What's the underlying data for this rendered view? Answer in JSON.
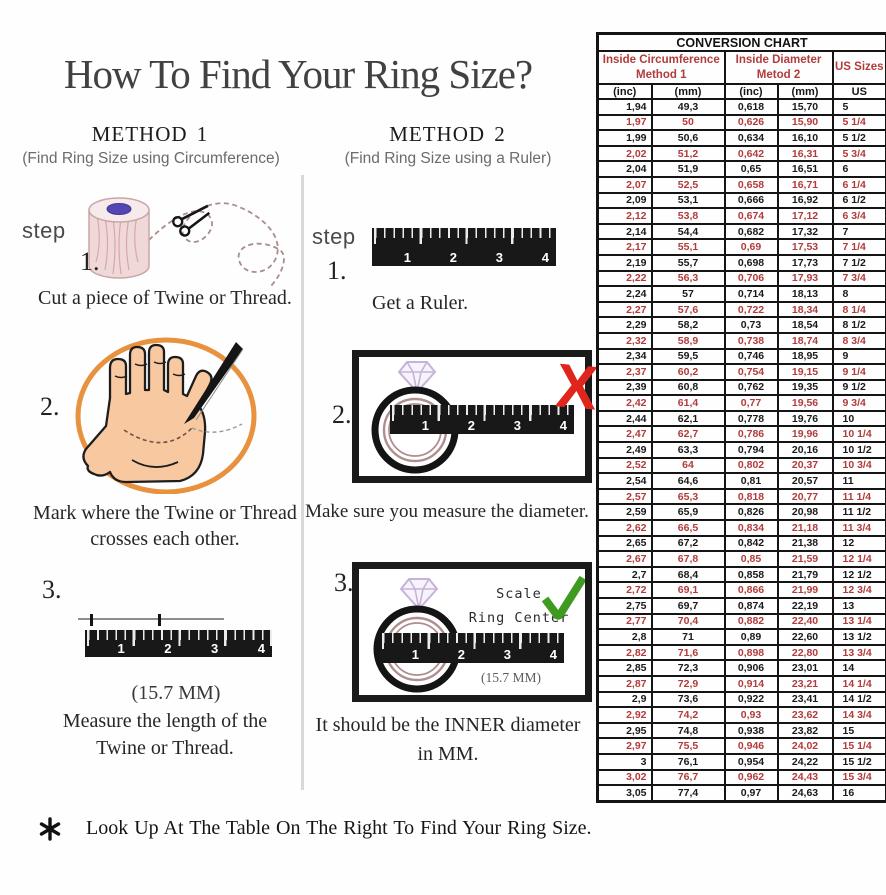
{
  "title": "How To Find Your Ring Size?",
  "footnote": {
    "bullet": "*",
    "text": "Look Up At The Table On The Right To Find Your Ring Size."
  },
  "ruler_numbers": [
    "1",
    "2",
    "3",
    "4"
  ],
  "method1": {
    "heading": "METHOD 1",
    "subtitle": "(Find Ring Size using Circumference)",
    "step_label": "step",
    "steps": [
      {
        "num": "1.",
        "caption": "Cut a piece of Twine or Thread."
      },
      {
        "num": "2.",
        "caption_line1": "Mark where the Twine or Thread",
        "caption_line2": "crosses each other."
      },
      {
        "num": "3.",
        "measurement": "(15.7 MM)",
        "caption_line1": "Measure the length of the",
        "caption_line2": "Twine or Thread."
      }
    ]
  },
  "method2": {
    "heading": "METHOD 2",
    "subtitle": "(Find Ring Size using a Ruler)",
    "step_label": "step",
    "steps": [
      {
        "num": "1.",
        "caption": "Get a Ruler."
      },
      {
        "num": "2.",
        "caption": "Make sure you measure the diameter."
      },
      {
        "num": "3.",
        "scale_label_line1": "Scale",
        "scale_label_line2": "Ring Center",
        "measurement": "(15.7 MM)",
        "caption_line1": "It should be the INNER diameter",
        "caption_line2": "in MM."
      }
    ]
  },
  "conversion_table": {
    "title": "CONVERSION CHART",
    "col_group1_line1": "Inside Circumference",
    "col_group1_line2": "Method 1",
    "col_group2_line1": "Inside Diameter",
    "col_group2_line2": "Metod 2",
    "col_group3": "US Sizes",
    "units": [
      "(inc)",
      "(mm)",
      "(inc)",
      "(mm)",
      "US"
    ],
    "text_color_normal": "#1a1a1a",
    "text_color_alt": "#b23b3b",
    "border_color": "#141414",
    "rows": [
      [
        "1,94",
        "49,3",
        "0,618",
        "15,70",
        "5"
      ],
      [
        "1,97",
        "50",
        "0,626",
        "15,90",
        "5 1/4"
      ],
      [
        "1,99",
        "50,6",
        "0,634",
        "16,10",
        "5 1/2"
      ],
      [
        "2,02",
        "51,2",
        "0,642",
        "16,31",
        "5 3/4"
      ],
      [
        "2,04",
        "51,9",
        "0,65",
        "16,51",
        "6"
      ],
      [
        "2,07",
        "52,5",
        "0,658",
        "16,71",
        "6 1/4"
      ],
      [
        "2,09",
        "53,1",
        "0,666",
        "16,92",
        "6 1/2"
      ],
      [
        "2,12",
        "53,8",
        "0,674",
        "17,12",
        "6 3/4"
      ],
      [
        "2,14",
        "54,4",
        "0,682",
        "17,32",
        "7"
      ],
      [
        "2,17",
        "55,1",
        "0,69",
        "17,53",
        "7 1/4"
      ],
      [
        "2,19",
        "55,7",
        "0,698",
        "17,73",
        "7 1/2"
      ],
      [
        "2,22",
        "56,3",
        "0,706",
        "17,93",
        "7 3/4"
      ],
      [
        "2,24",
        "57",
        "0,714",
        "18,13",
        "8"
      ],
      [
        "2,27",
        "57,6",
        "0,722",
        "18,34",
        "8 1/4"
      ],
      [
        "2,29",
        "58,2",
        "0,73",
        "18,54",
        "8 1/2"
      ],
      [
        "2,32",
        "58,9",
        "0,738",
        "18,74",
        "8 3/4"
      ],
      [
        "2,34",
        "59,5",
        "0,746",
        "18,95",
        "9"
      ],
      [
        "2,37",
        "60,2",
        "0,754",
        "19,15",
        "9 1/4"
      ],
      [
        "2,39",
        "60,8",
        "0,762",
        "19,35",
        "9 1/2"
      ],
      [
        "2,42",
        "61,4",
        "0,77",
        "19,56",
        "9 3/4"
      ],
      [
        "2,44",
        "62,1",
        "0,778",
        "19,76",
        "10"
      ],
      [
        "2,47",
        "62,7",
        "0,786",
        "19,96",
        "10 1/4"
      ],
      [
        "2,49",
        "63,3",
        "0,794",
        "20,16",
        "10 1/2"
      ],
      [
        "2,52",
        "64",
        "0,802",
        "20,37",
        "10 3/4"
      ],
      [
        "2,54",
        "64,6",
        "0,81",
        "20,57",
        "11"
      ],
      [
        "2,57",
        "65,3",
        "0,818",
        "20,77",
        "11 1/4"
      ],
      [
        "2,59",
        "65,9",
        "0,826",
        "20,98",
        "11 1/2"
      ],
      [
        "2,62",
        "66,5",
        "0,834",
        "21,18",
        "11 3/4"
      ],
      [
        "2,65",
        "67,2",
        "0,842",
        "21,38",
        "12"
      ],
      [
        "2,67",
        "67,8",
        "0,85",
        "21,59",
        "12 1/4"
      ],
      [
        "2,7",
        "68,4",
        "0,858",
        "21,79",
        "12 1/2"
      ],
      [
        "2,72",
        "69,1",
        "0,866",
        "21,99",
        "12 3/4"
      ],
      [
        "2,75",
        "69,7",
        "0,874",
        "22,19",
        "13"
      ],
      [
        "2,77",
        "70,4",
        "0,882",
        "22,40",
        "13 1/4"
      ],
      [
        "2,8",
        "71",
        "0,89",
        "22,60",
        "13 1/2"
      ],
      [
        "2,82",
        "71,6",
        "0,898",
        "22,80",
        "13 3/4"
      ],
      [
        "2,85",
        "72,3",
        "0,906",
        "23,01",
        "14"
      ],
      [
        "2,87",
        "72,9",
        "0,914",
        "23,21",
        "14 1/4"
      ],
      [
        "2,9",
        "73,6",
        "0,922",
        "23,41",
        "14 1/2"
      ],
      [
        "2,92",
        "74,2",
        "0,93",
        "23,62",
        "14 3/4"
      ],
      [
        "2,95",
        "74,8",
        "0,938",
        "23,82",
        "15"
      ],
      [
        "2,97",
        "75,5",
        "0,946",
        "24,02",
        "15 1/4"
      ],
      [
        "3",
        "76,1",
        "0,954",
        "24,22",
        "15 1/2"
      ],
      [
        "3,02",
        "76,7",
        "0,962",
        "24,43",
        "15 3/4"
      ],
      [
        "3,05",
        "77,4",
        "0,97",
        "24,63",
        "16"
      ]
    ]
  }
}
